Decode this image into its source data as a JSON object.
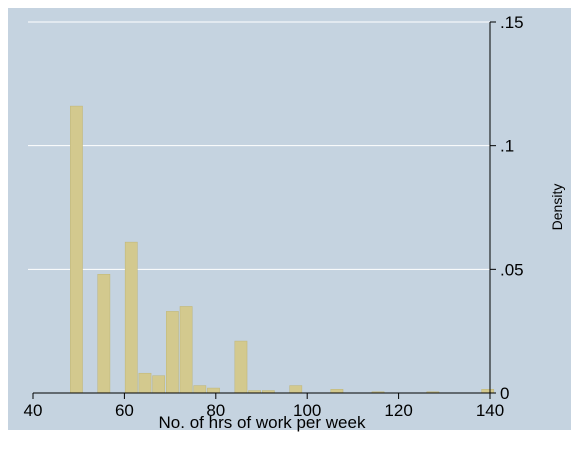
{
  "colors": {
    "outer_background": "#ffffff",
    "plot_region": "#c5d3e0",
    "gridline": "#ffffff",
    "bar_fill": "#d3c98e",
    "bar_stroke": "#bfb576",
    "axis": "#000000"
  },
  "chart_data": {
    "type": "bar",
    "title": "",
    "xlabel": "No. of hrs of work per week",
    "ylabel": "Density",
    "xlim": [
      40,
      140
    ],
    "ylim": [
      0,
      0.15
    ],
    "y_axis_side": "right",
    "grid": true,
    "legend": false,
    "x_ticks": [
      40,
      60,
      80,
      100,
      120,
      140
    ],
    "x_tick_labels": [
      "40",
      "60",
      "80",
      "100",
      "120",
      "140"
    ],
    "y_ticks": [
      0,
      0.05,
      0.1,
      0.15
    ],
    "y_tick_labels": [
      "0",
      ".05",
      ".1",
      ".15"
    ],
    "bin_width": 3,
    "bins": [
      {
        "start": 48,
        "density": 0.116
      },
      {
        "start": 54,
        "density": 0.048
      },
      {
        "start": 60,
        "density": 0.061
      },
      {
        "start": 63,
        "density": 0.008
      },
      {
        "start": 66,
        "density": 0.007
      },
      {
        "start": 69,
        "density": 0.033
      },
      {
        "start": 72,
        "density": 0.035
      },
      {
        "start": 75,
        "density": 0.003
      },
      {
        "start": 78,
        "density": 0.002
      },
      {
        "start": 84,
        "density": 0.021
      },
      {
        "start": 87,
        "density": 0.001
      },
      {
        "start": 90,
        "density": 0.001
      },
      {
        "start": 96,
        "density": 0.003
      },
      {
        "start": 105,
        "density": 0.0015
      },
      {
        "start": 114,
        "density": 0.0005
      },
      {
        "start": 126,
        "density": 0.0005
      },
      {
        "start": 138,
        "density": 0.0015
      }
    ]
  }
}
